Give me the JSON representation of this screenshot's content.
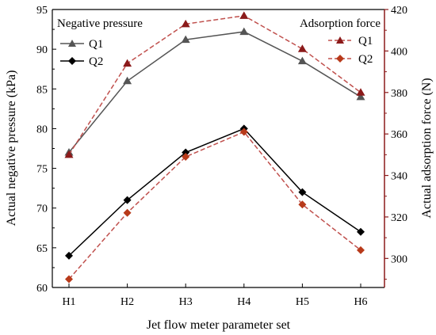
{
  "chart_data": {
    "type": "line",
    "categories": [
      "H1",
      "H2",
      "H3",
      "H4",
      "H5",
      "H6"
    ],
    "xlabel": "Jet flow meter parameter set",
    "ylabel_left": "Actual negative pressure (kPa)",
    "ylabel_right": "Actual adsorption force (N)",
    "ylim_left": [
      60,
      95
    ],
    "yticks_left": [
      60,
      65,
      70,
      75,
      80,
      85,
      90,
      95
    ],
    "ylim_right": [
      286,
      420
    ],
    "yticks_right": [
      300,
      320,
      340,
      360,
      380,
      400,
      420
    ],
    "legend_left_title": "Negative pressure",
    "legend_right_title": "Adsorption force",
    "series": [
      {
        "name": "Q1",
        "axis": "left",
        "style": "solid",
        "color": "#555555",
        "marker": "triangle",
        "values": [
          77.0,
          86.0,
          91.2,
          92.2,
          88.5,
          84.0
        ]
      },
      {
        "name": "Q2",
        "axis": "left",
        "style": "solid",
        "color": "#000000",
        "marker": "diamond",
        "values": [
          64.0,
          71.0,
          77.0,
          80.0,
          72.0,
          67.0
        ]
      },
      {
        "name": "Q1",
        "axis": "right",
        "style": "dashed",
        "color": "#c0504d",
        "marker_color": "#8b1a1a",
        "marker": "triangle",
        "values": [
          350,
          394,
          413,
          417,
          401,
          380
        ]
      },
      {
        "name": "Q2",
        "axis": "right",
        "style": "dashed",
        "color": "#c0504d",
        "marker_color": "#b83a1a",
        "marker": "diamond",
        "values": [
          290,
          322,
          349,
          361,
          326,
          304
        ]
      }
    ],
    "axis_right_color": "#8b1a1a"
  }
}
